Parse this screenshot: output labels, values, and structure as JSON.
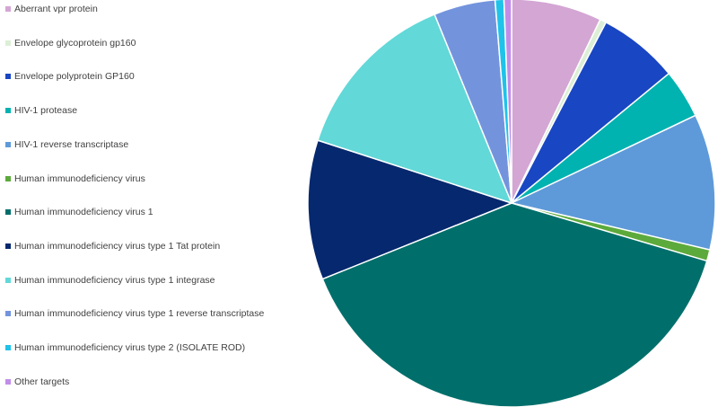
{
  "chart_data": {
    "type": "pie",
    "title": "",
    "legend_position": "left",
    "series": [
      {
        "name": "",
        "slices": [
          {
            "label": "Aberrant vpr protein",
            "value": 7.2,
            "color": "#d4a6d4"
          },
          {
            "label": "Envelope glycoprotein gp160",
            "value": 0.5,
            "color": "#dcefd6"
          },
          {
            "label": "Envelope polyprotein GP160",
            "value": 6.4,
            "color": "#1946c2"
          },
          {
            "label": "HIV-1 protease",
            "value": 3.9,
            "color": "#00b3b0"
          },
          {
            "label": "HIV-1 reverse transcriptase",
            "value": 10.8,
            "color": "#5e9ad9"
          },
          {
            "label": "Human immunodeficiency virus",
            "value": 0.9,
            "color": "#5caa3c"
          },
          {
            "label": "Human immunodeficiency virus 1",
            "value": 39.5,
            "color": "#006f6b"
          },
          {
            "label": "Human immunodeficiency virus type 1 Tat protein",
            "value": 11.1,
            "color": "#05286e"
          },
          {
            "label": "Human immunodeficiency virus type 1 integrase",
            "value": 13.9,
            "color": "#62d8d8"
          },
          {
            "label": "Human immunodeficiency virus type 1 reverse transcriptase",
            "value": 4.9,
            "color": "#7394dd"
          },
          {
            "label": "Human immunodeficiency virus type 2 (ISOLATE ROD)",
            "value": 0.7,
            "color": "#1fc3ea"
          },
          {
            "label": "Other targets",
            "value": 0.6,
            "color": "#c28de8"
          }
        ]
      }
    ]
  }
}
